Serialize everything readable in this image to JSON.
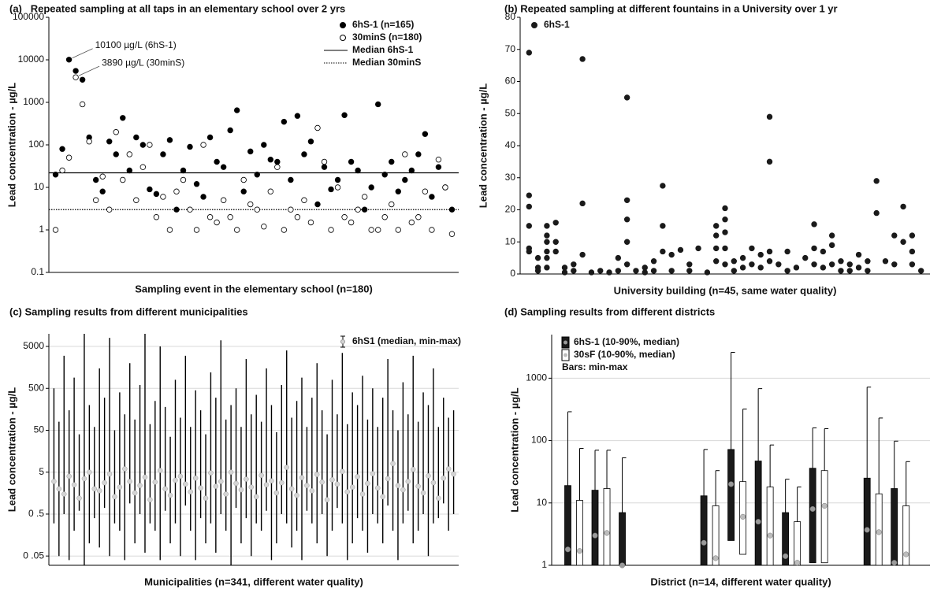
{
  "chart_data": [
    {
      "type": "scatter",
      "title": "(a)   Repeated sampling at all taps in an elementary school over 2 yrs",
      "x_label": "Sampling event in the elementary school (n=180)",
      "y_label": "Lead concentration - µg/L",
      "log_y": true,
      "ylim": [
        0.1,
        100000
      ],
      "yticks": [
        0.1,
        1,
        10,
        100,
        1000,
        10000,
        100000
      ],
      "xlim": [
        0,
        61
      ],
      "legend": "upper right",
      "x": [
        1,
        2,
        3,
        4,
        5,
        6,
        7,
        8,
        9,
        10,
        11,
        12,
        13,
        14,
        15,
        16,
        17,
        18,
        19,
        20,
        21,
        22,
        23,
        24,
        25,
        26,
        27,
        28,
        29,
        30,
        31,
        32,
        33,
        34,
        35,
        36,
        37,
        38,
        39,
        40,
        41,
        42,
        43,
        44,
        45,
        46,
        47,
        48,
        49,
        50,
        51,
        52,
        53,
        54,
        55,
        56,
        57,
        58,
        59,
        60
      ],
      "series": [
        {
          "name": "6hS-1 (n=165)",
          "color": "#000000",
          "filled": true,
          "values": [
            20,
            80,
            10100,
            5500,
            3400,
            150,
            15,
            8,
            120,
            60,
            430,
            25,
            150,
            100,
            9,
            7,
            60,
            130,
            3,
            25,
            90,
            12,
            6,
            150,
            40,
            30,
            220,
            650,
            8,
            70,
            20,
            100,
            45,
            40,
            350,
            15,
            480,
            60,
            120,
            4,
            30,
            9,
            15,
            500,
            40,
            25,
            3,
            10,
            900,
            20,
            40,
            8,
            15,
            25,
            60,
            180,
            6,
            30,
            10,
            3
          ]
        },
        {
          "name": "30minS (n=180)",
          "color": "#000000",
          "filled": false,
          "values": [
            1,
            25,
            50,
            3890,
            900,
            120,
            5,
            18,
            3,
            200,
            15,
            60,
            5,
            30,
            100,
            2,
            6,
            1,
            8,
            15,
            3,
            1,
            100,
            2,
            1.5,
            5,
            2,
            1,
            15,
            4,
            3,
            1.2,
            8,
            30,
            1,
            3,
            2,
            5,
            1.5,
            250,
            40,
            1,
            10,
            2,
            1.5,
            3,
            6,
            1,
            1,
            2,
            4,
            1,
            60,
            1.5,
            2,
            8,
            1,
            45,
            10,
            0.8
          ]
        }
      ],
      "reference_lines": [
        {
          "name": "Median 6hS-1",
          "value": 22,
          "style": "solid"
        },
        {
          "name": "Median 30minS",
          "value": 3,
          "style": "dotted"
        }
      ],
      "annotations": [
        {
          "text": "10100 µg/L (6hS-1)",
          "x": 3,
          "y": 10100
        },
        {
          "text": "3890 µg/L (30minS)",
          "x": 4,
          "y": 3890
        }
      ]
    },
    {
      "type": "scatter",
      "title": "(b) Repeated sampling at different fountains in a University over 1 yr",
      "x_label": "University building (n=45, same water quality)",
      "y_label": "Lead concentration - µg/L",
      "ylim": [
        0,
        80
      ],
      "yticks": [
        0,
        10,
        20,
        30,
        40,
        50,
        60,
        70,
        80
      ],
      "xlim": [
        0,
        46
      ],
      "legend": "upper left",
      "x": [
        1,
        1,
        1,
        1,
        1,
        1,
        2,
        2,
        2,
        3,
        3,
        3,
        3,
        3,
        3,
        4,
        4,
        4,
        5,
        5,
        6,
        6,
        7,
        7,
        7,
        8,
        9,
        10,
        11,
        11,
        12,
        12,
        12,
        12,
        12,
        13,
        14,
        14,
        15,
        15,
        16,
        16,
        16,
        17,
        17,
        18,
        19,
        19,
        20,
        21,
        22,
        22,
        22,
        22,
        23,
        23,
        23,
        23,
        23,
        24,
        24,
        25,
        25,
        26,
        26,
        27,
        27,
        28,
        28,
        28,
        28,
        29,
        30,
        30,
        31,
        32,
        33,
        33,
        33,
        34,
        34,
        35,
        35,
        35,
        36,
        36,
        37,
        37,
        38,
        38,
        39,
        39,
        40,
        40,
        41,
        42,
        42,
        43,
        43,
        44,
        44,
        44,
        45
      ],
      "series": [
        {
          "name": "6hS-1",
          "color": "#1a1a1a",
          "filled": true,
          "values": [
            69,
            24.5,
            21,
            15,
            8,
            7,
            5,
            2,
            1,
            15,
            12,
            10,
            7,
            5,
            2,
            16,
            10,
            7,
            2,
            0.5,
            3,
            1,
            67,
            22,
            6,
            0.5,
            1,
            0.5,
            5,
            1,
            55,
            23,
            17,
            10,
            3,
            1,
            2,
            0.5,
            4,
            1,
            27.5,
            15,
            7,
            6,
            1,
            7.5,
            3,
            1,
            8,
            0.5,
            15,
            12,
            8,
            4,
            20.5,
            17,
            13,
            8,
            3,
            4,
            1,
            5,
            2,
            8,
            3,
            6,
            2,
            49,
            35,
            7,
            4,
            3,
            7,
            1,
            2,
            5,
            15.5,
            8,
            3,
            7,
            2,
            12,
            9,
            3,
            4,
            1,
            3,
            1,
            6,
            2,
            4,
            1,
            29,
            19,
            4,
            12,
            3,
            21,
            10,
            12,
            7,
            3,
            1
          ]
        }
      ]
    },
    {
      "type": "errorbar",
      "title": "(c) Sampling results from different municipalities",
      "x_label": "Municipalities (n=341, different water quality)",
      "y_label": "Lead concentration - µg/L",
      "log_y": true,
      "ylim": [
        0.03,
        10000
      ],
      "yticks": [
        {
          "value": 0.05,
          "label": "0 .05"
        },
        {
          "value": 0.5,
          "label": "0 .5"
        },
        5,
        50,
        500,
        5000
      ],
      "xlim": [
        0,
        81
      ],
      "legend": "upper right",
      "grid": true,
      "x": [
        1,
        2,
        3,
        4,
        5,
        6,
        7,
        8,
        9,
        10,
        11,
        12,
        13,
        14,
        15,
        16,
        17,
        18,
        19,
        20,
        21,
        22,
        23,
        24,
        25,
        26,
        27,
        28,
        29,
        30,
        31,
        32,
        33,
        34,
        35,
        36,
        37,
        38,
        39,
        40,
        41,
        42,
        43,
        44,
        45,
        46,
        47,
        48,
        49,
        50,
        51,
        52,
        53,
        54,
        55,
        56,
        57,
        58,
        59,
        60,
        61,
        62,
        63,
        64,
        65,
        66,
        67,
        68,
        69,
        70,
        71,
        72,
        73,
        74,
        75,
        76,
        77,
        78,
        79,
        80
      ],
      "series": [
        {
          "name": "6hS1 (median, min-max)",
          "color": "#000000",
          "median_color": "#d4d4d4",
          "median": [
            3,
            2,
            1.5,
            4,
            2.5,
            1.2,
            3.5,
            5,
            2,
            1.8,
            2.8,
            4.5,
            1.3,
            2.2,
            6,
            3,
            1.6,
            2.4,
            3.8,
            1.1,
            2.9,
            5.5,
            2,
            1.4,
            3.2,
            4,
            2.6,
            1.7,
            3.6,
            2.1,
            1.2,
            4.8,
            2.3,
            3,
            1.5,
            5,
            2.7,
            1.9,
            3.4,
            2.2,
            1.3,
            4.2,
            2.5,
            3.1,
            1.6,
            2.8,
            6.5,
            2,
            1.4,
            3.7,
            2.4,
            1.8,
            4.4,
            2.9,
            1.1,
            3.3,
            2.6,
            5.2,
            1.7,
            2.2,
            3.9,
            1.5,
            2.7,
            4.6,
            2.1,
            1.3,
            3.5,
            8,
            2.4,
            1.9,
            3,
            5.8,
            2.3,
            1.6,
            4.1,
            2.8,
            1.2,
            3.6,
            6,
            4.5
          ],
          "min": [
            0.3,
            0.05,
            0.5,
            0.04,
            0.2,
            0.6,
            0.03,
            0.1,
            0.4,
            0.08,
            0.7,
            0.05,
            0.3,
            0.2,
            0.04,
            0.9,
            0.1,
            0.5,
            0.06,
            0.3,
            0.2,
            0.04,
            0.6,
            0.1,
            0.3,
            0.05,
            0.8,
            0.2,
            0.04,
            0.4,
            0.1,
            0.3,
            0.06,
            0.5,
            0.2,
            0.03,
            0.7,
            0.1,
            0.4,
            0.05,
            0.3,
            0.2,
            0.6,
            0.04,
            0.1,
            0.5,
            0.3,
            0.08,
            0.2,
            0.04,
            0.6,
            0.3,
            0.1,
            0.5,
            0.05,
            0.2,
            0.7,
            0.3,
            0.04,
            0.1,
            0.4,
            0.2,
            0.06,
            0.5,
            0.3,
            0.1,
            0.8,
            0.2,
            0.04,
            0.3,
            0.6,
            0.1,
            0.2,
            0.5,
            0.05,
            0.3,
            0.4,
            0.9,
            0.2,
            0.5
          ],
          "max": [
            500,
            80,
            3000,
            150,
            900,
            40,
            10000,
            200,
            60,
            1500,
            300,
            8000,
            50,
            400,
            120,
            2000,
            90,
            600,
            10000,
            70,
            250,
            5000,
            180,
            35,
            800,
            100,
            3000,
            60,
            450,
            150,
            40,
            1200,
            300,
            7000,
            90,
            200,
            500,
            60,
            2500,
            120,
            350,
            80,
            1500,
            200,
            45,
            600,
            4000,
            100,
            250,
            900,
            60,
            300,
            2000,
            150,
            40,
            800,
            120,
            3500,
            70,
            400,
            200,
            1000,
            90,
            500,
            60,
            300,
            2500,
            150,
            50,
            700,
            120,
            3000,
            80,
            400,
            200,
            1500,
            60,
            300,
            100,
            150
          ]
        }
      ]
    },
    {
      "type": "box",
      "title": "(d) Sampling results from different districts",
      "x_label": "District (n=14, different water quality)",
      "y_label": "Lead concentration - µg/L",
      "log_y": true,
      "ylim": [
        1,
        5000
      ],
      "yticks": [
        1,
        10,
        100,
        1000
      ],
      "legend": "upper left",
      "legend_note": "Bars: min-max",
      "grid": true,
      "categories": [
        null,
        null,
        null,
        null,
        null,
        null,
        null,
        null,
        null,
        null,
        null,
        null,
        null,
        null
      ],
      "series": [
        {
          "name": "6hS-1 (10-90%, median)",
          "color": "#1a1a1a",
          "median_color": "#9a9a9a",
          "p10": [
            1,
            1,
            1,
            null,
            null,
            1,
            2.5,
            1,
            1,
            1.1,
            null,
            1,
            1,
            null
          ],
          "p90": [
            19,
            16,
            7,
            null,
            null,
            13,
            72,
            47,
            7,
            36,
            null,
            25,
            17,
            null
          ],
          "median": [
            1.8,
            3,
            1,
            null,
            null,
            2.3,
            20,
            5,
            1.4,
            8,
            null,
            3.7,
            1.1,
            null
          ],
          "max": [
            290,
            70,
            53,
            null,
            null,
            72,
            2600,
            680,
            24,
            160,
            null,
            720,
            98,
            null
          ]
        },
        {
          "name": "30sF (10-90%, median)",
          "color": "#ffffff",
          "median_color": "#bdbdbd",
          "p10": [
            1,
            1,
            null,
            null,
            null,
            1,
            1.5,
            1,
            1,
            1.1,
            null,
            1,
            1,
            null
          ],
          "p90": [
            11,
            17,
            null,
            null,
            null,
            9,
            22,
            18,
            5,
            33,
            null,
            14,
            9,
            null
          ],
          "median": [
            1.7,
            3.3,
            null,
            null,
            null,
            1.3,
            6,
            3,
            1.1,
            9,
            null,
            3.4,
            1.5,
            null
          ],
          "max": [
            75,
            70,
            null,
            null,
            null,
            33,
            320,
            85,
            18,
            155,
            null,
            230,
            46,
            null
          ]
        }
      ]
    }
  ]
}
